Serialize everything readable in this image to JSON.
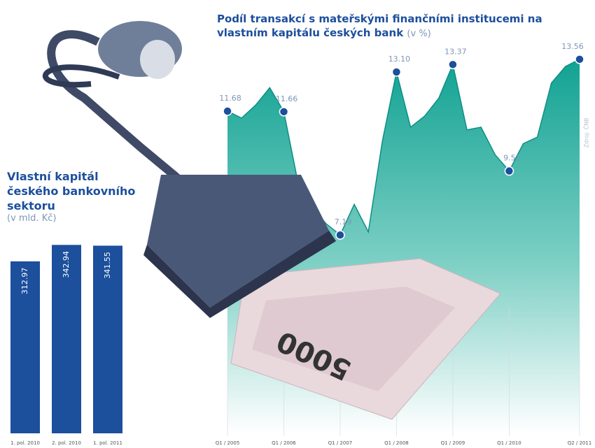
{
  "chart_data": [
    {
      "type": "bar",
      "title": "Vlastní kapitál českého bankovního sektoru",
      "subtitle": "(v mld. Kč)",
      "categories": [
        "1. pol. 2010",
        "2. pol. 2010",
        "1. pol. 2011"
      ],
      "values": [
        312.97,
        342.94,
        341.55
      ],
      "color": "#1c4f9c",
      "ylim": [
        0,
        360
      ]
    },
    {
      "type": "area",
      "title": "Podíl transakcí s mateřskými finančními institucemi na vlastním kapitálu českých bank",
      "subtitle": "(v %)",
      "source": "Zdroj: ČNB",
      "categories": [
        "Q1 / 2005",
        null,
        null,
        null,
        "Q1 / 2006",
        null,
        null,
        null,
        "Q1 / 2007",
        null,
        null,
        null,
        "Q1 / 2008",
        null,
        null,
        null,
        "Q1 / 2009",
        null,
        null,
        null,
        "Q1 / 2010",
        null,
        null,
        null,
        null,
        "Q2 / 2011"
      ],
      "values": [
        11.68,
        11.43,
        11.9,
        12.53,
        11.66,
        9.1,
        8.2,
        7.6,
        7.19,
        8.3,
        7.3,
        10.6,
        13.1,
        11.1,
        11.5,
        12.15,
        13.37,
        11.0,
        11.1,
        10.1,
        9.51,
        10.5,
        10.74,
        12.7,
        13.3,
        13.56
      ],
      "value_labels": [
        "11.68",
        null,
        null,
        null,
        "11.66",
        null,
        null,
        null,
        "7.19",
        null,
        null,
        null,
        "13.10",
        null,
        null,
        null,
        "13.37",
        null,
        null,
        null,
        "9.51",
        null,
        null,
        null,
        null,
        "13.56"
      ],
      "color": "#18a89a",
      "marker_color": "#1c4f9c",
      "ylim": [
        0,
        15
      ]
    }
  ]
}
